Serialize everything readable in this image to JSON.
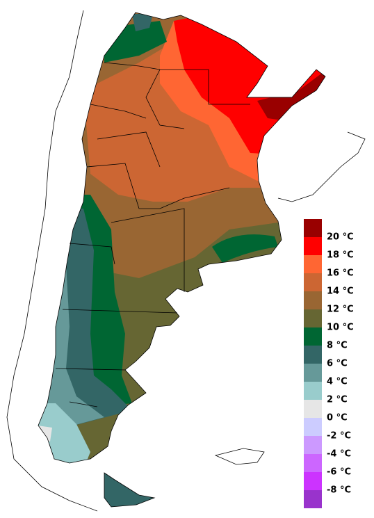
{
  "legend": {
    "labels": [
      "20 °C",
      "18 °C",
      "16 °C",
      "14 °C",
      "12 °C",
      "10 °C",
      "8 °C",
      "6 °C",
      "4 °C",
      "2 °C",
      "0 °C",
      "-2 °C",
      "-4 °C",
      "-6 °C",
      "-8 °C"
    ],
    "colors": [
      "#990000",
      "#ff0000",
      "#ff6633",
      "#cc6633",
      "#996633",
      "#666633",
      "#006633",
      "#336666",
      "#669999",
      "#99cccc",
      "#e6e6e6",
      "#ccccff",
      "#cc99ff",
      "#cc66ff",
      "#cc33ff",
      "#9933cc"
    ]
  }
}
